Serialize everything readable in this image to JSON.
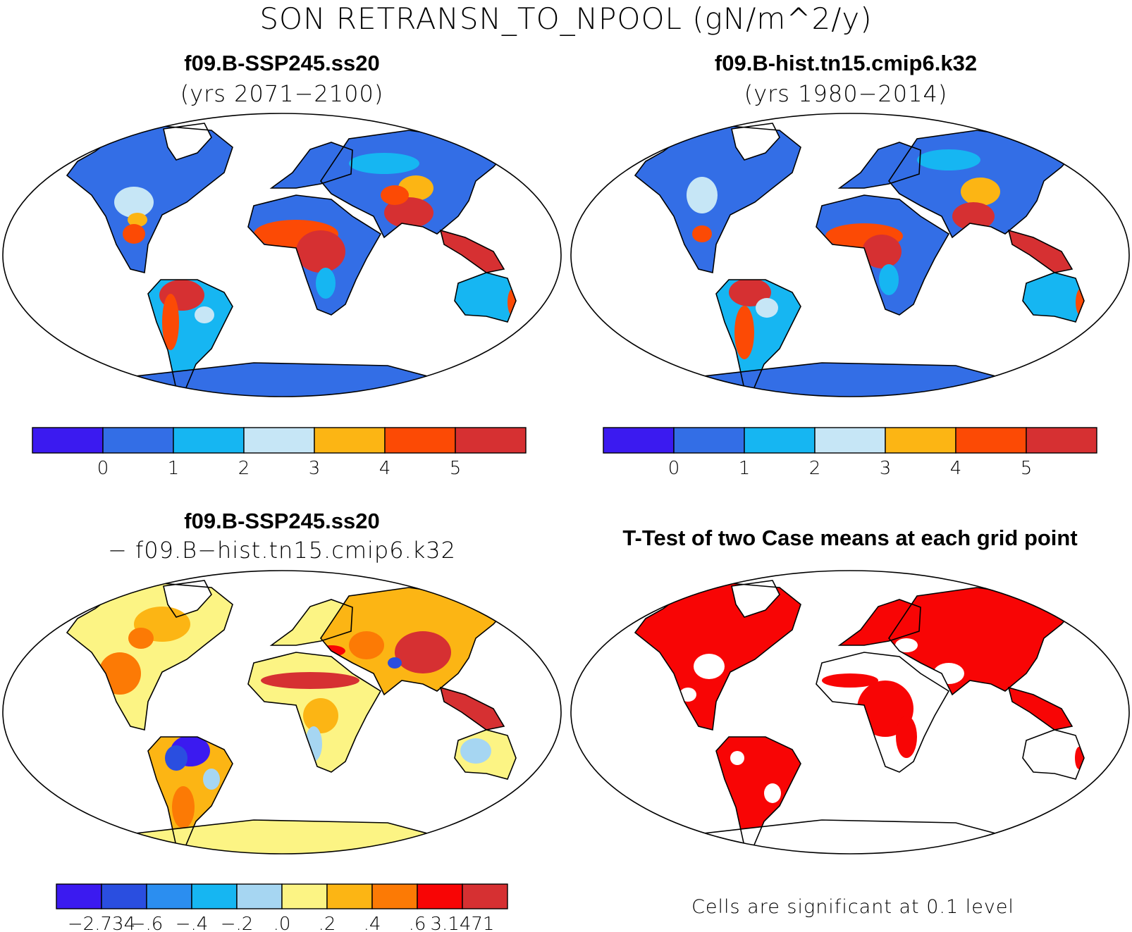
{
  "title": "SON RETRANSN_TO_NPOOL (gN/m^2/y)",
  "panels": [
    {
      "id": "case1",
      "title": "f09.B-SSP245.ss20",
      "subtitle": "(yrs 2071−2100)",
      "colorbar": {
        "colors": [
          "#3b1af0",
          "#336ee6",
          "#16b6f2",
          "#c6e6f6",
          "#fcb514",
          "#fc4a05",
          "#d63032"
        ],
        "labels": [
          "0",
          "1",
          "2",
          "3",
          "4",
          "5"
        ]
      }
    },
    {
      "id": "case2",
      "title": "f09.B-hist.tn15.cmip6.k32",
      "subtitle": "(yrs 1980−2014)",
      "colorbar": {
        "colors": [
          "#3b1af0",
          "#336ee6",
          "#16b6f2",
          "#c6e6f6",
          "#fcb514",
          "#fc4a05",
          "#d63032"
        ],
        "labels": [
          "0",
          "1",
          "2",
          "3",
          "4",
          "5"
        ]
      }
    },
    {
      "id": "diff",
      "title": "f09.B-SSP245.ss20",
      "subtitle": "− f09.B−hist.tn15.cmip6.k32",
      "colorbar": {
        "colors": [
          "#3b1af0",
          "#2a4ee0",
          "#2b8ef0",
          "#16b6f2",
          "#a6d6f2",
          "#fcf484",
          "#fcb514",
          "#fc7a05",
          "#f80505",
          "#d63032"
        ],
        "labels": [
          "−2.734",
          "−.6",
          "−.4",
          "−.2",
          ".0",
          ".2",
          ".4",
          ".6",
          "3.1471"
        ]
      }
    },
    {
      "id": "ttest",
      "title": "T-Test of two Case means at each grid point",
      "note": "Cells are significant at 0.1 level",
      "sig_color": "#f80505"
    }
  ]
}
